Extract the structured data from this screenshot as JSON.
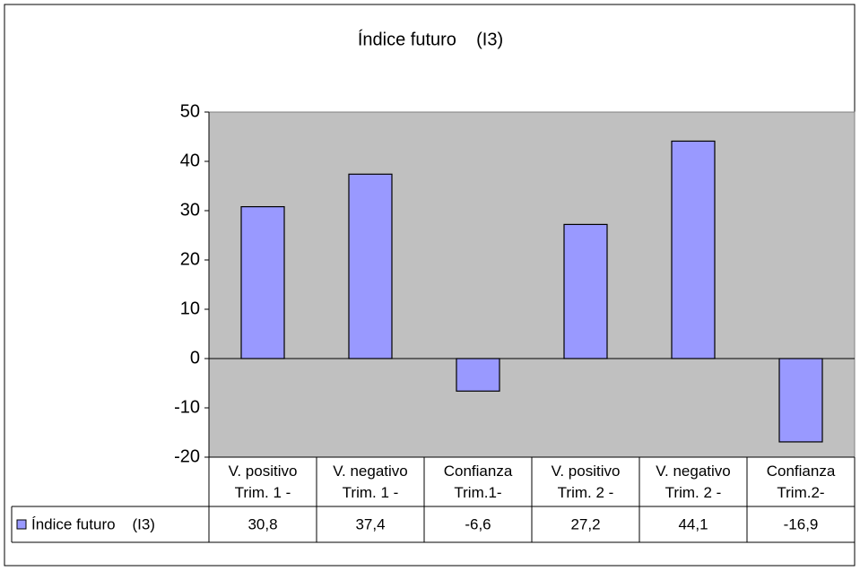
{
  "chart_data": {
    "type": "bar",
    "title": "Índice futuro    (I3)",
    "categories": [
      "V. positivo\nTrim. 1 -",
      "V. negativo\nTrim. 1 -",
      "Confianza\nTrim.1-",
      "V. positivo\nTrim. 2 -",
      "V. negativo\nTrim. 2 -",
      "Confianza\nTrim.2-"
    ],
    "series": [
      {
        "name": "Índice futuro    (I3)",
        "color": "#9999ff",
        "values": [
          30.8,
          37.4,
          -6.6,
          27.2,
          44.1,
          -16.9
        ],
        "value_labels": [
          "30,8",
          "37,4",
          "-6,6",
          "27,2",
          "44,1",
          "-16,9"
        ]
      }
    ],
    "ylim": [
      -20,
      50
    ],
    "yticks": [
      -20,
      -10,
      0,
      10,
      20,
      30,
      40,
      50
    ],
    "grid": false,
    "plot_color": "#c0c0c0",
    "data_table": true
  }
}
